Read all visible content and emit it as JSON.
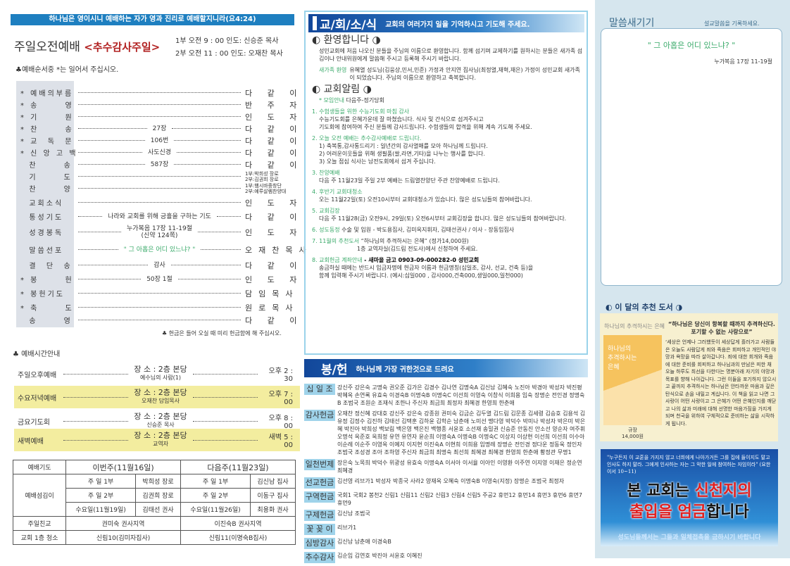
{
  "banner": "하나님은 영이시니 예배하는 자가 영과 진리로 예배할지니라(요4:24)",
  "service": {
    "title": "주일오전예배",
    "subtitle": "<추수감사주일>",
    "time1": "1부 오전 9 : 00  인도: 신승준 목사",
    "time2": "2부 오전 11 : 00  인도: 오재찬 목사",
    "note": "♣예배순서중 *는 일어서 주십시오."
  },
  "order": [
    {
      "label": "* 예배의부름",
      "content": "",
      "who": "다 같 이"
    },
    {
      "label": "* 송      영",
      "content": "",
      "who": "반 주 자"
    },
    {
      "label": "* 기      원",
      "content": "",
      "who": "인 도 자"
    },
    {
      "label": "* 찬      송",
      "content": "27장",
      "who": "다 같 이"
    },
    {
      "label": "* 교  독  문",
      "content": "106번",
      "who": "다 같 이"
    },
    {
      "label": "* 신 앙 고 백",
      "content": "사도신경",
      "who": "다 같 이"
    },
    {
      "label": "  찬      송",
      "content": "587장",
      "who": "다 같 이"
    },
    {
      "label": "  기      도",
      "content": "",
      "who": "1부:박희성 장로\n2부:김권희 장로"
    },
    {
      "label": "  찬      양",
      "content": "",
      "who": "1부:햄시바중창단\n2부:예루살렘찬양대"
    },
    {
      "label": "  교회소식",
      "content": "",
      "who": "인 도 자"
    },
    {
      "label": "  통성기도",
      "content": "나라와 교회를 위해 긍휼을 구하는 기도",
      "who": "다 같 이"
    },
    {
      "label": "  성경봉독",
      "content": "누가복음 17장 11-19절\n(신약 124쪽)",
      "who": "인 도 자"
    },
    {
      "label": "  말씀선포",
      "content": "\" 그 아홉은 어디 있느냐? \"",
      "who": "오재찬목사"
    },
    {
      "label": "  결  단  송",
      "content": "감사",
      "who": "다 같 이"
    },
    {
      "label": "* 봉      헌",
      "content": "50장 1절",
      "who": "인 도 자"
    },
    {
      "label": "* 봉헌기도",
      "content": "",
      "who": "담임목사"
    },
    {
      "label": "* 축      도",
      "content": "",
      "who": "원로목사"
    },
    {
      "label": "  송      영",
      "content": "",
      "who": "다 같 이"
    }
  ],
  "offering_note": "♣ 헌금은 들어 오실 때 미리 헌금함에 해 주십시오.",
  "schedule_title": "♣ 예배시간안내",
  "schedule": [
    {
      "name": "주일오후예배",
      "place": "장 소 : 2층 본당",
      "sub": "예수님의 사람(1)",
      "time": "오후 2 : 30",
      "highlight": false
    },
    {
      "name": "수요저녁예배",
      "place": "장 소 : 2층 본당",
      "sub": "오재찬 담임목사",
      "time": "오후 7 : 00",
      "highlight": true
    },
    {
      "name": "금요기도회",
      "place": "장 소 : 2층 본당",
      "sub": "신승준 목사",
      "time": "오후 8 : 00",
      "highlight": false
    },
    {
      "name": "새벽예배",
      "place": "장 소 : 2층 본당",
      "sub": "교역자",
      "time": "새벽 5 : 00",
      "highlight": true
    }
  ],
  "prayer_table": {
    "h": [
      "예배기도",
      "이번주(11월16일)",
      "다음주(11월23일)"
    ],
    "label": "예배섬김이",
    "rows": [
      [
        "주  일  1부",
        "박희성 장로",
        "주  일  1부",
        "김신남 집사"
      ],
      [
        "주  일  2부",
        "김권희 장로",
        "주  일  2부",
        "이동구 집사"
      ],
      [
        "수요일(11월19일)",
        "김태선 권사",
        "수요일(11월26일)",
        "최용화 권사"
      ]
    ],
    "r2": [
      "주일친교",
      "권미숙 권사지역",
      "이진숙B 권사지역"
    ],
    "r3": [
      "교회 1층 청소",
      "신림10(김미자집사)",
      "신림11(이명숙B집사)"
    ]
  },
  "news": {
    "header": "교/회/소/식",
    "header_sub": "교회의 여러가지 일을 기억하시고 기도해 주세요.",
    "welcome_title": "◐ 환영합니다 ◑",
    "welcome_text": "성민교회에 처음 나오신 분들을 주님의 이름으로 환영합니다. 함께 섬기며 교제하기를 원하시는 분들은 새가족 섬김이나 안내위원에게 말씀해 주시고 등록해 주시기 바랍니다.",
    "newfam_label": "새가족 환영",
    "newfam_text": "유혜열 성도님(김웅상,민서,민준) 가정과 안지연 집사님(최정열,재혁,재은) 가정이 성민교회 새가족이 되었습니다. 주님의 이름으로 환영하고 축복합니다.",
    "notice_title": "◐ 교회알림 ◑",
    "meeting_label": "* 모임안내",
    "meeting_text": "다음주-정기당회",
    "items": [
      {
        "title": "1. 수험생들을 위한 수능기도회 마침 감사",
        "lines": [
          "수능기도회를 은혜가운데 잘 마쳤습니다. 식사 및 간식으로 섬겨주시고",
          "기도회에 참여하여 주신 분들께 감사드립니다. 수험생들의 합격을 위해 계속 기도해 주세요."
        ]
      },
      {
        "title": "2. 오늘 오전 예배는 추수감사예배로 드립니다.",
        "lines": [
          "1) 축복통,감사통드리기 : 일년간의 감사열매를 모아 하나님께 드립니다.",
          "2) 어려운이웃들을 위해 생필품(쌀,라면,기타)을 나누는 행사를 합니다.",
          "3) 오늘 점심 식사는 남전도회에서 섬겨 주십니다."
        ]
      },
      {
        "title": "3. 찬양예배",
        "lines": [
          "다음 주 11월23일 주일 2부 예배는 드림열찬양단 주관 찬양예배로 드립니다."
        ]
      },
      {
        "title": "4. 후반기 교회대청소",
        "lines": [
          "오는 11월22일(토) 오전10시부터 교회대청소가 있습니다. 많은 성도님들의 참여바랍니다."
        ]
      },
      {
        "title": "5. 교회김장",
        "lines": [
          "다음 주 11월28(금) 오전9시, 29일(토) 오전6시부터 교회김장을 합니다. 많은 성도님들의 참여바랍니다."
        ]
      }
    ],
    "item6_label": "6. 성도동정",
    "item6_text": "수술 및 입원 - 박도용집사, 김미옥지휘자, 김태선권사 / 이사 - 장동임집사",
    "item7_label": "7. 11월의 추천도서",
    "item7_text": "“하나님의 추격하시는 은혜” (정가14,000원)",
    "item7_text2": "1층 교역자실(김드림 전도사)에서 신청하여 주세요.",
    "item8_label": "8. 교회헌금 계좌안내",
    "item8_account": "- 새마을 금고 0903-09-000282-0 성민교회",
    "item8_lines": [
      "송금하실 때에는 반드시 입금자명에 헌금자 이름과 헌금명칭(십일조, 감사, 선교, 건축 등)을",
      "함께 입력해 주시기 바랍니다. (예시:십일000 , 감사000,건축000,생일000,일천000)"
    ]
  },
  "offering": {
    "header": "봉/헌",
    "header_sub": "하나님께 가장 귀한것으로 드려요",
    "rows": [
      {
        "label": "십 일 조",
        "names": "강신주 강은숙 고명숙 권오준 김가은 김경수 김나연 김명숙A 김신남 김혜숙 노진아 박경아 박성자 박진평 박혜옥 손연록 유효숙 이경숙B 이명숙B 이명숙C 이선희 이영숙 이창식 이희용 임숙 장명순 전인경 정명숙B 조범국 조원순 조재식 조한나 주신자 최금희 최정자 최혜경 한영희 한춘애"
      },
      {
        "label": "감사헌금",
        "names": "오재찬 정신혜 강대호 강신주 강은숙 강종원 권미숙 김금순 김두열 김드림 김문종 김세령 김승호 김용석 김유정 김정수 김진하 김태선 김택훈 김하윤 김학순 남춘애 노미선 맹다영 박덕수 박미나 박성자 박은미 박은혜 박진아 박희성 백보림 백은영 백은진 백행종 서윤호 소선재 송밀권 신승준 안동진 안소선 양순자 여주휘 오명석 옥준호 옥희정 유연 유연자 윤순희 이명숙A 이명숙B 이명숙C 이상지 이상현 이선희 이선희 이수아 이순례 이순주 이영옥 이예지 이지현 이진숙A 이현희 이희용 임명례 장명순 전인경 정다운 정동욱 정인자 조범국 조성경 조아 조하영 주신자 최금희 최명숙 최선희 최혜경 최혜경 한영희 한춘애 황정관 무명1"
      },
      {
        "label": "일천번제",
        "names": "장은숙 노목희 박덕수 위광성 유효숙 이명숙A 이서아 이서율 이아인 이영환 이주연 이지영 이재은 정순연 최혜경"
      },
      {
        "label": "선교헌금",
        "names": "김선영 리브가1 박성자 박종국 사라2 양재옥 오혜숙 이명숙B 이영숙(지정) 장명순 조범국 최정자"
      },
      {
        "label": "구역헌금",
        "names": "국회1 국회2 봉천2 신림1 신림11 신림2 신림3 신림4 신림5 주공2 휴먼12 휴먼14 휴먼3 휴먼6 휴먼7 휴먼9"
      },
      {
        "label": "구제헌금",
        "names": "김신남 조범국"
      },
      {
        "label": "꽃 꽂 이",
        "names": "리브가1"
      },
      {
        "label": "심방감사",
        "names": "김신남 남춘애 이경숙B"
      },
      {
        "label": "추수감사",
        "names": "김순임 김연호 박진아 서윤호 이혜진"
      }
    ]
  },
  "sermon_note": {
    "title": "말씀새기기",
    "sub": "설교말씀을 기록하세요.",
    "quote": "\" 그 아홉은 어디 있느냐? \"",
    "ref": "누가복음 17장 11-19절"
  },
  "book": {
    "title": "◐ 이 달의 추천 도서 ◑",
    "name": "하나님의 추격하시는 은혜",
    "cover_title": "하나님의\n추격하시는\n은혜",
    "price_label": "규장",
    "price": "14,000원",
    "headline": "“하나님은 당신이 항복할 때까지 추격하신다. 포기할 수 없는 사랑으로”",
    "desc": "‘세상은 언제나 그러했듯이 세상답게 흘러가고 사람들은 오늘도 사람답게 죄와 죽음은 회피하고 개인적인 야망과 욕망을 따라 살아갑니다. 죄에 대한 회개와 죽음에 대한 준비를 회피하고 하나님과의 만남은 피한 채 오늘 하루도 최선을 다한다는 명분아래 자기의 야망과 목표를 향해 나아갑니다. 그런 이들을 포기하지 않으시고 끝까지 추격하시는 하나님은 안타까운 마음과 깊은 탄식으로 손을 내밀고 계십니다. 이 책을 읽고 나면 그 사랑이 어떤 사랑이고 그 은혜가 어떤 은혜인지를 깨닫고 나의 삶과 미래에 대해 선명한 마음가짐을 가지게 되며 천국을 위하여 구체적으로 준비하는 삶을 시작하게 됩니다."
  },
  "ad": {
    "quote": "\"누구든지 이 교훈을 가지지 않고 너희에게 나아가거든 그를 집에 들이지도 말고 인사도 하지 말라. 그에게 인사하는 자는 그 악한 일에 참여하는 자임이라\" (요한이서 10~11)",
    "b1": "본 교회는 ",
    "b1r": "신천지의",
    "b2r": "출입을 엄금",
    "b2": "합니다",
    "sub": "성도님들께서는 그들과 일체접촉을 금하시기 바랍니다"
  },
  "colors": {
    "banner": "#1e7fc0",
    "accent_red": "#b22222",
    "green": "#3aaa6a",
    "highlight": "#f3ed9f",
    "label_bg": "#9fd3ea"
  }
}
